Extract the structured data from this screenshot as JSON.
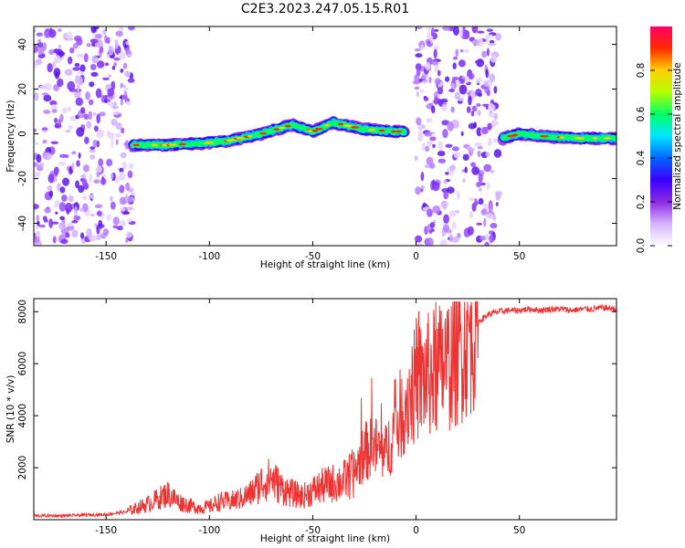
{
  "title": "C2E3.2023.247.05.15.R01",
  "chart_data": [
    {
      "type": "heatmap",
      "xlabel": "Height of straight line (km)",
      "ylabel": "Frequency (Hz)",
      "xlim": [
        -185,
        97
      ],
      "ylim": [
        -50,
        48
      ],
      "xticks": [
        -150,
        -100,
        -50,
        0,
        50
      ],
      "yticks": [
        -40,
        -20,
        0,
        20,
        40
      ],
      "colorbar": {
        "label": "Normalized spectral amplitude",
        "range": [
          0,
          1
        ],
        "ticks": [
          0.0,
          0.2,
          0.4,
          0.6,
          0.8
        ],
        "colormap": [
          "#ffffff",
          "#d6b3ff",
          "#8a2be2",
          "#3a00ff",
          "#0066ff",
          "#00e5ff",
          "#00ff66",
          "#b4ff00",
          "#ffd000",
          "#ff2a00",
          "#ff0066"
        ]
      },
      "features": [
        {
          "name": "noise band",
          "x_range": [
            -185,
            -137
          ]
        },
        {
          "name": "signal trace",
          "points": [
            [
              -137,
              -5
            ],
            [
              -120,
              -5
            ],
            [
              -100,
              -4
            ],
            [
              -90,
              -3
            ],
            [
              -75,
              0
            ],
            [
              -60,
              4
            ],
            [
              -50,
              1
            ],
            [
              -40,
              5
            ],
            [
              -25,
              2
            ],
            [
              -10,
              1
            ],
            [
              -5,
              1
            ]
          ]
        },
        {
          "name": "noise band",
          "x_range": [
            0,
            40
          ]
        },
        {
          "name": "signal trace",
          "points": [
            [
              42,
              -2
            ],
            [
              50,
              0
            ],
            [
              60,
              -1
            ],
            [
              80,
              -2
            ],
            [
              97,
              -2
            ]
          ]
        }
      ],
      "grid": false
    },
    {
      "type": "line",
      "xlabel": "Height of straight line (km)",
      "ylabel": "SNR (10 * v/v)",
      "xlim": [
        -185,
        97
      ],
      "ylim": [
        0,
        8500
      ],
      "xticks": [
        -150,
        -100,
        -50,
        0,
        50
      ],
      "yticks": [
        2000,
        4000,
        6000,
        8000
      ],
      "color": "#ee3333",
      "grid": false,
      "series": [
        {
          "x": [
            -185,
            -170,
            -160,
            -150,
            -140,
            -135,
            -130,
            -125,
            -120,
            -115,
            -110,
            -105,
            -100,
            -95,
            -90,
            -85,
            -80,
            -75,
            -70,
            -65,
            -60,
            -55,
            -50,
            -45,
            -40,
            -35,
            -30,
            -25,
            -20,
            -15,
            -10,
            -5,
            0,
            5,
            10,
            15,
            20,
            25,
            30,
            35,
            40,
            45,
            50,
            55,
            60,
            65,
            70,
            75,
            80,
            85,
            90,
            97
          ],
          "values": [
            150,
            150,
            180,
            200,
            300,
            450,
            600,
            800,
            1000,
            700,
            550,
            450,
            500,
            700,
            700,
            800,
            1000,
            1400,
            1600,
            1200,
            1000,
            900,
            1100,
            1300,
            1400,
            1500,
            1800,
            2600,
            2800,
            2500,
            3500,
            4600,
            5200,
            5500,
            5700,
            6000,
            6400,
            7000,
            7600,
            7900,
            8000,
            8050,
            8050,
            8100,
            8050,
            8100,
            8100,
            8050,
            8100,
            8100,
            8150,
            8100
          ]
        }
      ]
    }
  ]
}
